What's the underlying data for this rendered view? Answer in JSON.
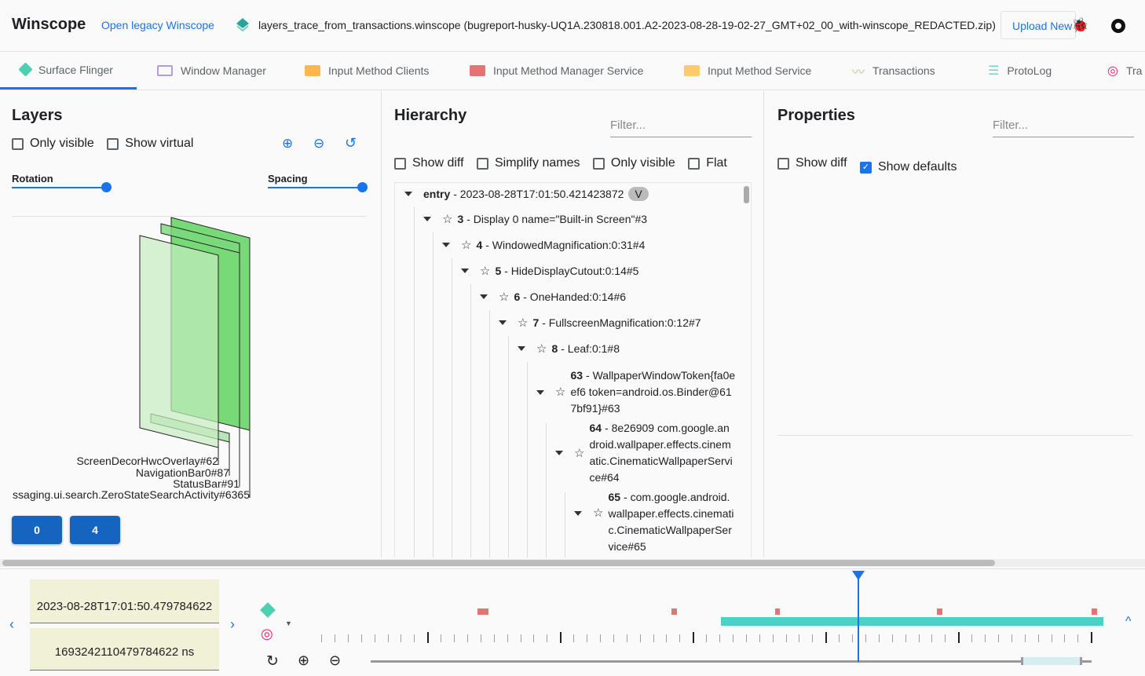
{
  "header": {
    "title": "Winscope",
    "legacy_link": "Open legacy Winscope",
    "file_name": "layers_trace_from_transactions.winscope (bugreport-husky-UQ1A.230818.001.A2-2023-08-28-19-02-27_GMT+02_00_with-winscope_REDACTED.zip)",
    "upload_label": "Upload New"
  },
  "tabs": [
    {
      "label": "Surface Flinger",
      "color": "#4dd0b0",
      "active": true
    },
    {
      "label": "Window Manager",
      "color": "#b39ddb"
    },
    {
      "label": "Input Method Clients",
      "color": "#ffb74d"
    },
    {
      "label": "Input Method Manager Service",
      "color": "#e57373"
    },
    {
      "label": "Input Method Service",
      "color": "#ffca6b"
    },
    {
      "label": "Transactions",
      "color": "#aed581"
    },
    {
      "label": "ProtoLog",
      "color": "#80cbc4"
    },
    {
      "label": "Tra",
      "color": "#e91e63"
    }
  ],
  "layers": {
    "title": "Layers",
    "only_visible": "Only visible",
    "show_virtual": "Show virtual",
    "rotation": "Rotation",
    "spacing": "Spacing",
    "labels": [
      "ScreenDecorHwcOverlay#62",
      "NavigationBar0#87",
      "StatusBar#91",
      "ssaging.ui.search.ZeroStateSearchActivity#6365"
    ],
    "display_buttons": [
      "0",
      "4"
    ]
  },
  "hierarchy": {
    "title": "Hierarchy",
    "filter_placeholder": "Filter...",
    "options": [
      "Show diff",
      "Simplify names",
      "Only visible",
      "Flat"
    ],
    "entry": {
      "label": "entry",
      "timestamp": "- 2023-08-28T17:01:50.421423872",
      "badge": "V"
    },
    "nodes": [
      {
        "id": "3",
        "name": "- Display 0 name=\"Built-in Screen\"#3"
      },
      {
        "id": "4",
        "name": "- WindowedMagnification:0:31#4"
      },
      {
        "id": "5",
        "name": "- HideDisplayCutout:0:14#5"
      },
      {
        "id": "6",
        "name": "- OneHanded:0:14#6"
      },
      {
        "id": "7",
        "name": "- FullscreenMagnification:0:12#7"
      },
      {
        "id": "8",
        "name": "- Leaf:0:1#8"
      },
      {
        "id": "63",
        "name": "- WallpaperWindowToken{fa0eef6 token=android.os.Binder@617bf91}#63"
      },
      {
        "id": "64",
        "name": "- 8e26909 com.google.android.wallpaper.effects.cinematic.CinematicWallpaperService#64"
      },
      {
        "id": "65",
        "name": "- com.google.android.wallpaper.effects.cinematic.CinematicWallpaperService#65"
      }
    ]
  },
  "properties": {
    "title": "Properties",
    "filter_placeholder": "Filter...",
    "show_diff": "Show diff",
    "show_defaults": "Show defaults",
    "show_defaults_checked": true
  },
  "timeline": {
    "timestamp": "2023-08-28T17:01:50.479784622",
    "timestamp_ns": "1693242110479784622 ns"
  }
}
